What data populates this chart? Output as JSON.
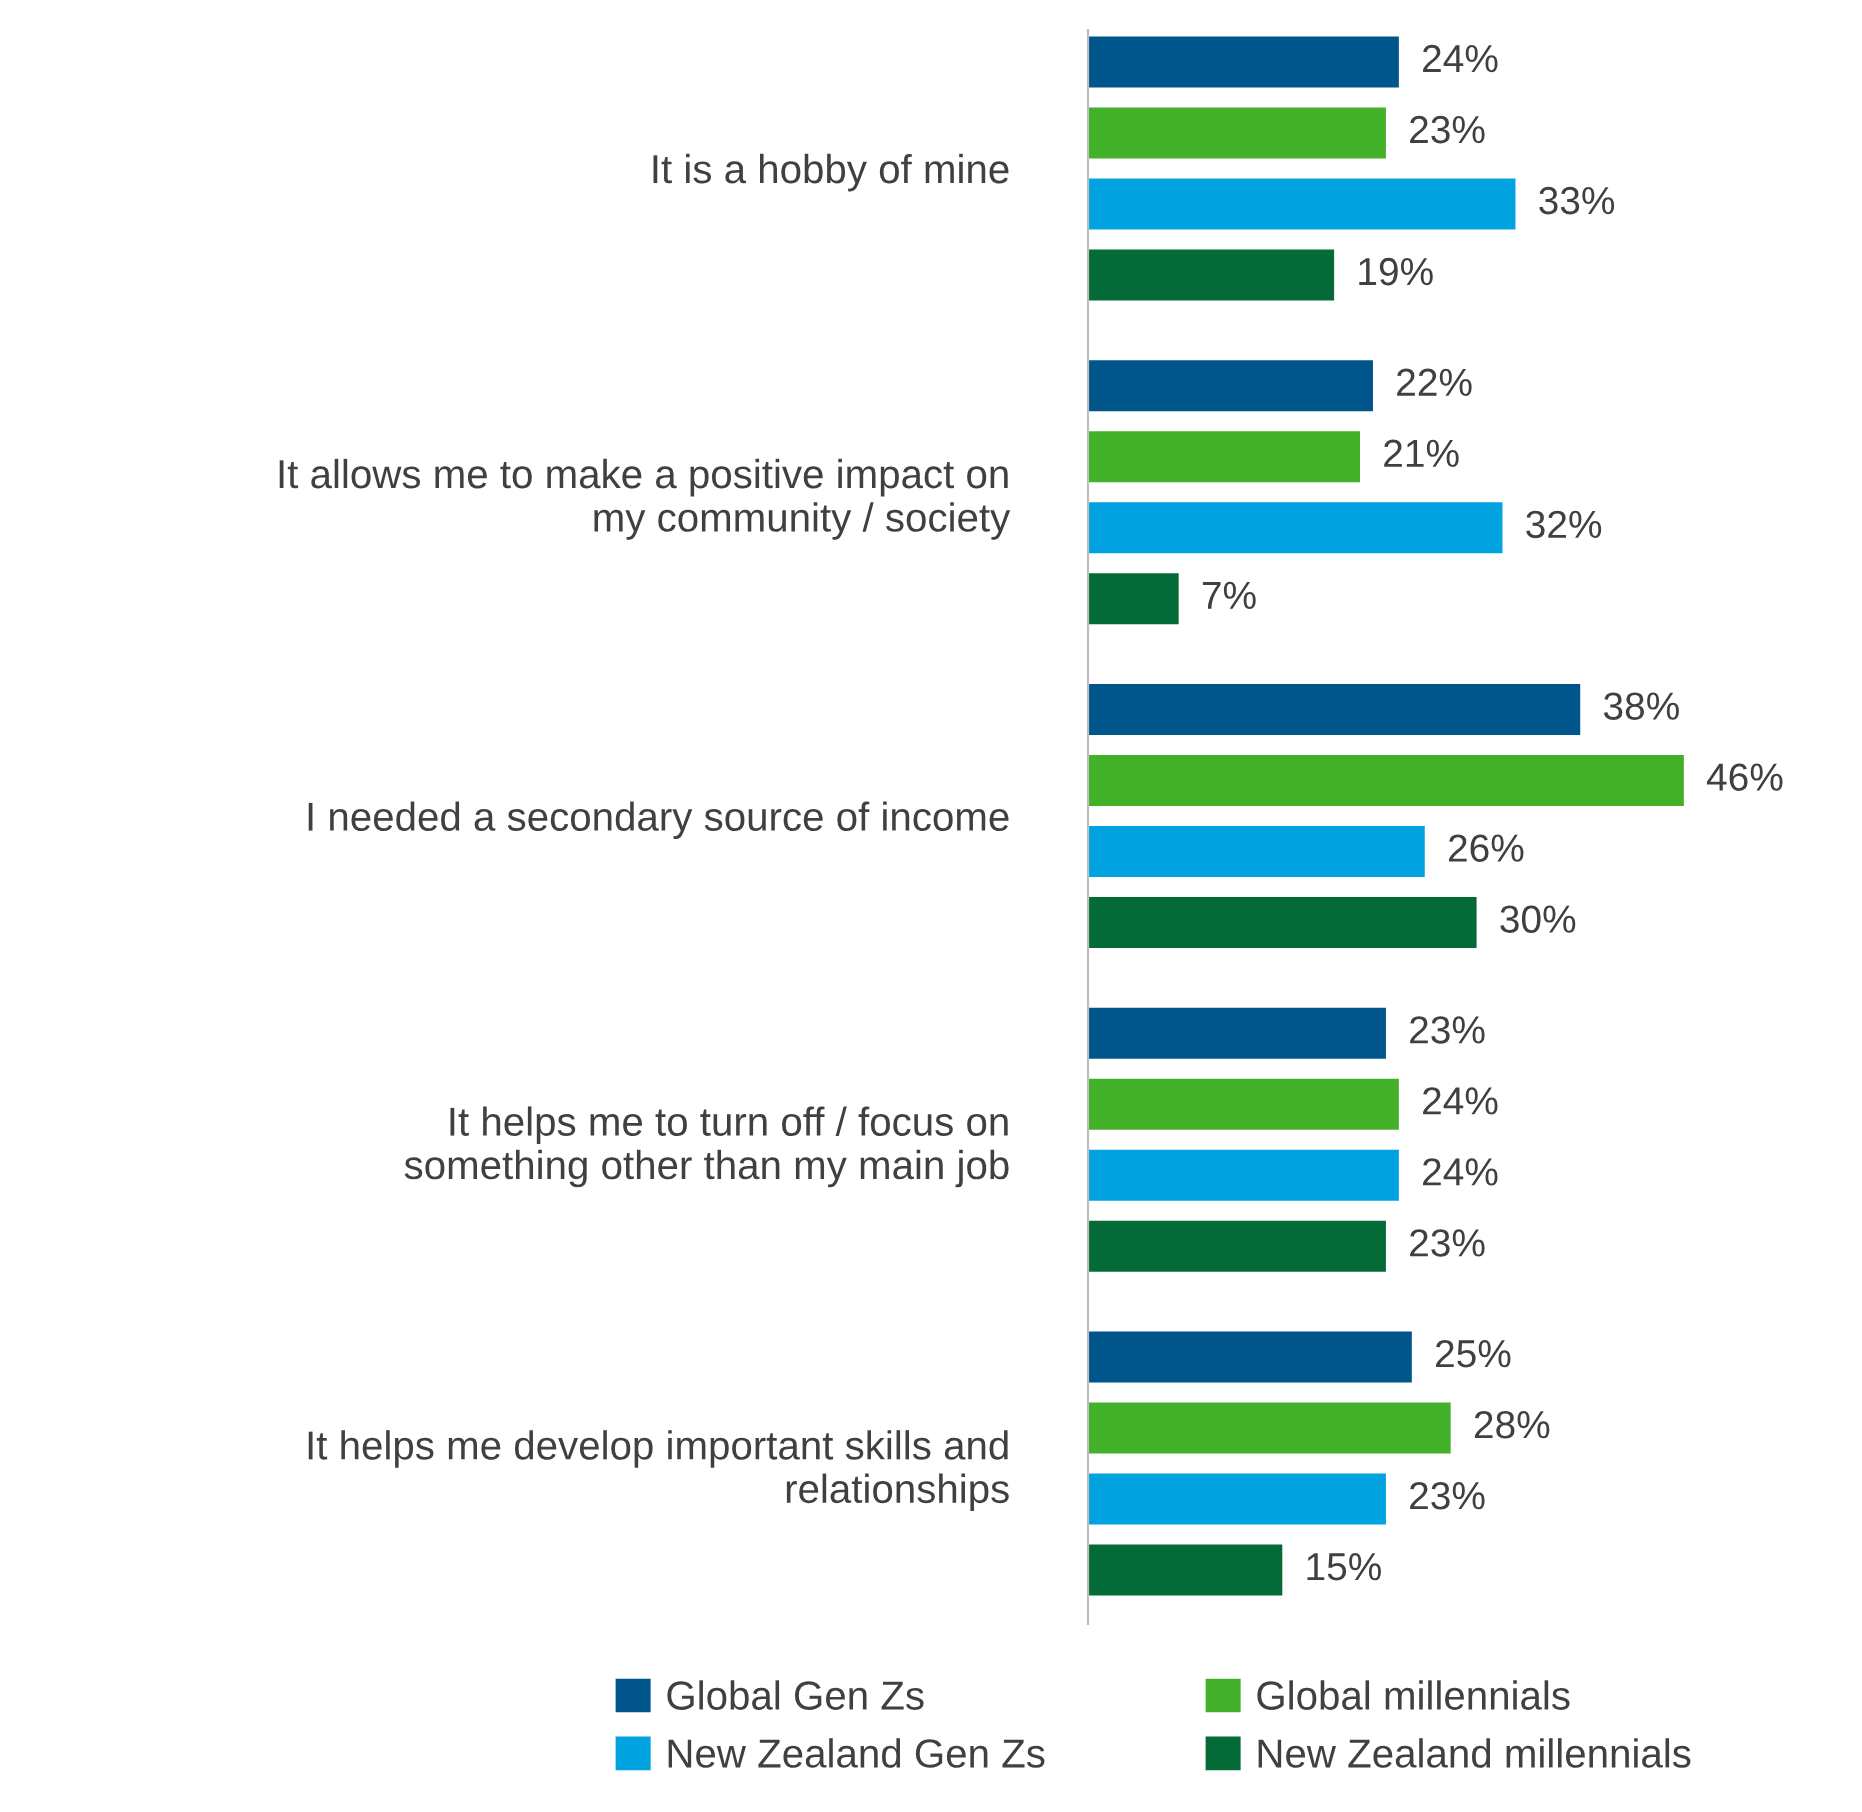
{
  "chart_data": {
    "type": "bar",
    "orientation": "horizontal",
    "legend": "bottom",
    "grid": false,
    "categories": [
      "It is a hobby of mine",
      "It allows me to make a positive impact on\nmy community / society",
      "I needed a secondary source of income",
      "It helps me to turn off / focus on\nsomething other than my main job",
      "It helps me develop important skills and\nrelationships"
    ],
    "series": [
      {
        "name": "Global Gen Zs",
        "color": "#00558a",
        "values": [
          24,
          22,
          38,
          23,
          25
        ],
        "value_labels": [
          "24%",
          "22%",
          "38%",
          "23%",
          "25%"
        ]
      },
      {
        "name": "Global millennials",
        "color": "#43b02a",
        "values": [
          23,
          21,
          46,
          24,
          28
        ],
        "value_labels": [
          "23%",
          "21%",
          "46%",
          "24%",
          "28%"
        ]
      },
      {
        "name": "New Zealand Gen Zs",
        "color": "#00a3e0",
        "values": [
          33,
          32,
          26,
          24,
          23
        ],
        "value_labels": [
          "33%",
          "32%",
          "26%",
          "24%",
          "23%"
        ]
      },
      {
        "name": "New Zealand millennials",
        "color": "#046a38",
        "values": [
          19,
          7,
          30,
          23,
          15
        ],
        "value_labels": [
          "19%",
          "7%",
          "30%",
          "23%",
          "15%"
        ]
      }
    ]
  }
}
